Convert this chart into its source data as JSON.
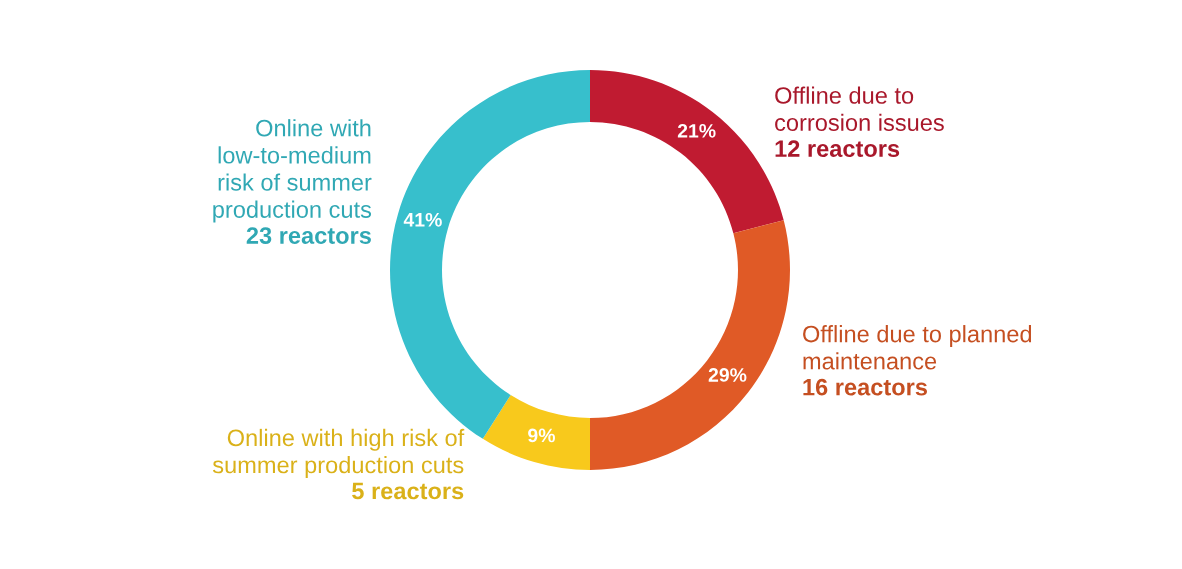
{
  "chart_data": {
    "type": "donut",
    "categories": [
      "Offline due to\ncorrosion issues",
      "Offline due to planned\nmaintenance",
      "Online with high risk of\nsummer production cuts",
      "Online with\nlow-to-medium\nrisk of summer\nproduction cuts"
    ],
    "values": [
      21,
      29,
      9,
      41
    ],
    "value_labels": [
      "21%",
      "29%",
      "9%",
      "41%"
    ],
    "colors": [
      "#c01b31",
      "#e05a26",
      "#f8c91c",
      "#37bfcc"
    ],
    "annotations": [
      "12 reactors",
      "16 reactors",
      "5 reactors",
      "23 reactors"
    ],
    "legend": false
  }
}
